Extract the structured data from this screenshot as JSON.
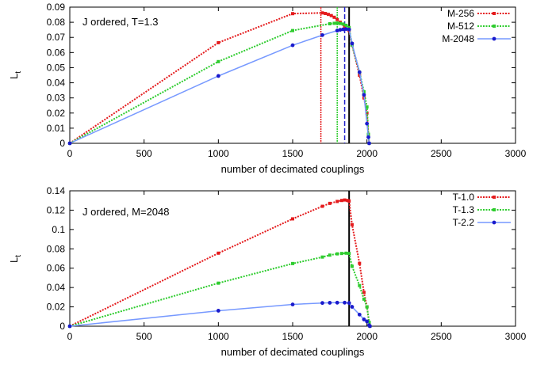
{
  "chart_data": [
    {
      "type": "line",
      "annotation": "J ordered, T=1.3",
      "xlabel": "number of decimated couplings",
      "ylabel": "L",
      "ylabel_sub": "t",
      "xlim": [
        0,
        3000
      ],
      "ylim": [
        0,
        0.09
      ],
      "xticks": [
        "0",
        "500",
        "1000",
        "1500",
        "2000",
        "2500",
        "3000"
      ],
      "yticks": [
        "0",
        "0.01",
        "0.02",
        "0.03",
        "0.04",
        "0.05",
        "0.06",
        "0.07",
        "0.08",
        "0.09"
      ],
      "legend_position": "top-right",
      "series": [
        {
          "name": "M-256",
          "color": "#e41a1c",
          "points": [
            [
              0,
              0
            ],
            [
              1000,
              0.0665
            ],
            [
              1500,
              0.0857
            ],
            [
              1700,
              0.0862
            ],
            [
              1720,
              0.0858
            ],
            [
              1740,
              0.0852
            ],
            [
              1760,
              0.0844
            ],
            [
              1780,
              0.0833
            ],
            [
              1800,
              0.0818
            ],
            [
              1820,
              0.08
            ],
            [
              1850,
              0.077
            ],
            [
              1880,
              0.0745
            ],
            [
              1900,
              0.065
            ],
            [
              1950,
              0.045
            ],
            [
              1980,
              0.03
            ],
            [
              2000,
              0.02
            ],
            [
              2010,
              0.005
            ],
            [
              2015,
              0
            ]
          ],
          "vline": 1690
        },
        {
          "name": "M-512",
          "color": "#2ecc2e",
          "points": [
            [
              0,
              0
            ],
            [
              1000,
              0.054
            ],
            [
              1500,
              0.0745
            ],
            [
              1750,
              0.079
            ],
            [
              1780,
              0.0793
            ],
            [
              1800,
              0.0794
            ],
            [
              1820,
              0.0792
            ],
            [
              1840,
              0.0788
            ],
            [
              1860,
              0.078
            ],
            [
              1880,
              0.0765
            ],
            [
              1900,
              0.065
            ],
            [
              1950,
              0.047
            ],
            [
              1980,
              0.034
            ],
            [
              2000,
              0.024
            ],
            [
              2010,
              0.006
            ],
            [
              2015,
              0
            ]
          ],
          "vline": 1800
        },
        {
          "name": "M-2048",
          "color": "#2222cc",
          "points": [
            [
              0,
              0
            ],
            [
              1000,
              0.0445
            ],
            [
              1500,
              0.0648
            ],
            [
              1700,
              0.0715
            ],
            [
              1800,
              0.0745
            ],
            [
              1820,
              0.075
            ],
            [
              1840,
              0.0753
            ],
            [
              1860,
              0.0755
            ],
            [
              1880,
              0.0752
            ],
            [
              1900,
              0.066
            ],
            [
              1950,
              0.047
            ],
            [
              1980,
              0.032
            ],
            [
              2000,
              0.013
            ],
            [
              2010,
              0.004
            ],
            [
              2015,
              0
            ]
          ],
          "vline": 1850
        }
      ],
      "black_vline": 1880
    },
    {
      "type": "line",
      "annotation": "J ordered, M=2048",
      "xlabel": "number of decimated couplings",
      "ylabel": "L",
      "ylabel_sub": "t",
      "xlim": [
        0,
        3000
      ],
      "ylim": [
        0,
        0.14
      ],
      "xticks": [
        "0",
        "500",
        "1000",
        "1500",
        "2000",
        "2500",
        "3000"
      ],
      "yticks": [
        "0",
        "0.02",
        "0.04",
        "0.06",
        "0.08",
        "0.1",
        "0.12",
        "0.14"
      ],
      "legend_position": "top-right",
      "series": [
        {
          "name": "T-1.0",
          "color": "#e41a1c",
          "points": [
            [
              0,
              0
            ],
            [
              1000,
              0.0755
            ],
            [
              1500,
              0.111
            ],
            [
              1700,
              0.124
            ],
            [
              1750,
              0.127
            ],
            [
              1800,
              0.129
            ],
            [
              1830,
              0.13
            ],
            [
              1850,
              0.1305
            ],
            [
              1870,
              0.13
            ],
            [
              1880,
              0.1295
            ],
            [
              1900,
              0.105
            ],
            [
              1950,
              0.065
            ],
            [
              1980,
              0.035
            ],
            [
              2000,
              0.02
            ],
            [
              2015,
              0.003
            ],
            [
              2020,
              0
            ]
          ]
        },
        {
          "name": "T-1.3",
          "color": "#2ecc2e",
          "points": [
            [
              0,
              0
            ],
            [
              1000,
              0.0445
            ],
            [
              1500,
              0.0648
            ],
            [
              1700,
              0.0715
            ],
            [
              1750,
              0.0735
            ],
            [
              1800,
              0.0748
            ],
            [
              1830,
              0.0752
            ],
            [
              1860,
              0.0755
            ],
            [
              1880,
              0.0752
            ],
            [
              1900,
              0.062
            ],
            [
              1950,
              0.042
            ],
            [
              1980,
              0.028
            ],
            [
              2000,
              0.02
            ],
            [
              2015,
              0.004
            ],
            [
              2020,
              0
            ]
          ]
        },
        {
          "name": "T-2.2",
          "color": "#2222cc",
          "points": [
            [
              0,
              0
            ],
            [
              1000,
              0.016
            ],
            [
              1500,
              0.0225
            ],
            [
              1700,
              0.024
            ],
            [
              1750,
              0.0242
            ],
            [
              1800,
              0.0243
            ],
            [
              1850,
              0.0243
            ],
            [
              1880,
              0.024
            ],
            [
              1900,
              0.02
            ],
            [
              1950,
              0.012
            ],
            [
              1980,
              0.007
            ],
            [
              2000,
              0.005
            ],
            [
              2015,
              0.001
            ],
            [
              2020,
              0
            ]
          ]
        }
      ],
      "black_vline": 1880
    }
  ]
}
